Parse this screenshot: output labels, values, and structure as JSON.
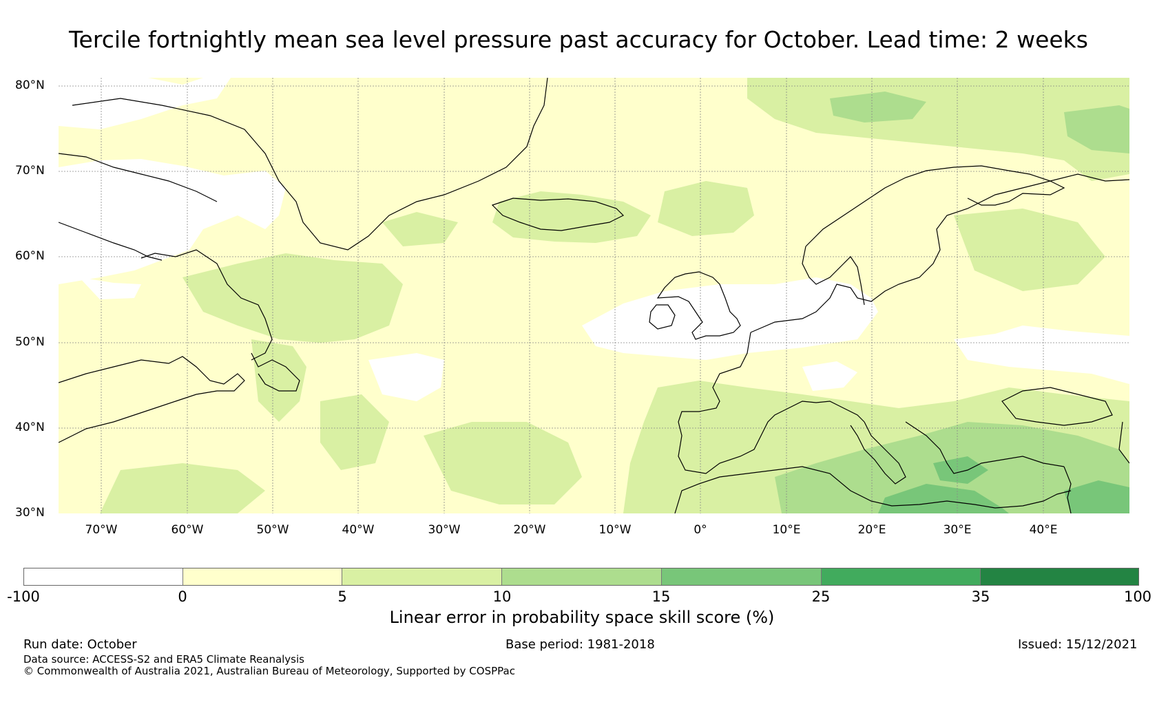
{
  "title": "Tercile fortnightly mean sea level pressure past accuracy for October. Lead time: 2 weeks",
  "map": {
    "lat_labels": [
      "80°N",
      "70°N",
      "60°N",
      "50°N",
      "40°N",
      "30°N"
    ],
    "lon_labels": [
      "70°W",
      "60°W",
      "50°W",
      "40°W",
      "30°W",
      "20°W",
      "10°W",
      "0°",
      "10°E",
      "20°E",
      "30°E",
      "40°E"
    ],
    "lon_range": [
      -75,
      50
    ],
    "lat_range": [
      30,
      81
    ],
    "regions": {
      "negative_skill": [
        "Northeast Canada / Baffin Bay",
        "British Isles & North Sea",
        "Central North Atlantic",
        "Eastern Europe near 50°N"
      ],
      "skill_5_10": [
        "Iceland & Norwegian Sea",
        "Labrador Sea & Newfoundland",
        "Arctic Ocean near Svalbard",
        "Mediterranean"
      ],
      "skill_10_25": [
        "Eastern Mediterranean & Middle East"
      ]
    }
  },
  "colorbar": {
    "ticks": [
      "-100",
      "0",
      "5",
      "10",
      "15",
      "25",
      "35",
      "100"
    ],
    "colors": [
      "#ffffff",
      "#ffffcc",
      "#d9f0a3",
      "#addd8e",
      "#78c679",
      "#41ab5d",
      "#238443"
    ],
    "label": "Linear error in probability space skill score (%)"
  },
  "footer": {
    "run_date": "Run date: October",
    "base_period": "Base period: 1981-2018",
    "issued": "Issued: 15/12/2021",
    "data_source": "Data source: ACCESS-S2 and ERA5 Climate Reanalysis",
    "copyright": "© Commonwealth of Australia 2021, Australian Bureau of Meteorology, Supported by COSPPac"
  }
}
